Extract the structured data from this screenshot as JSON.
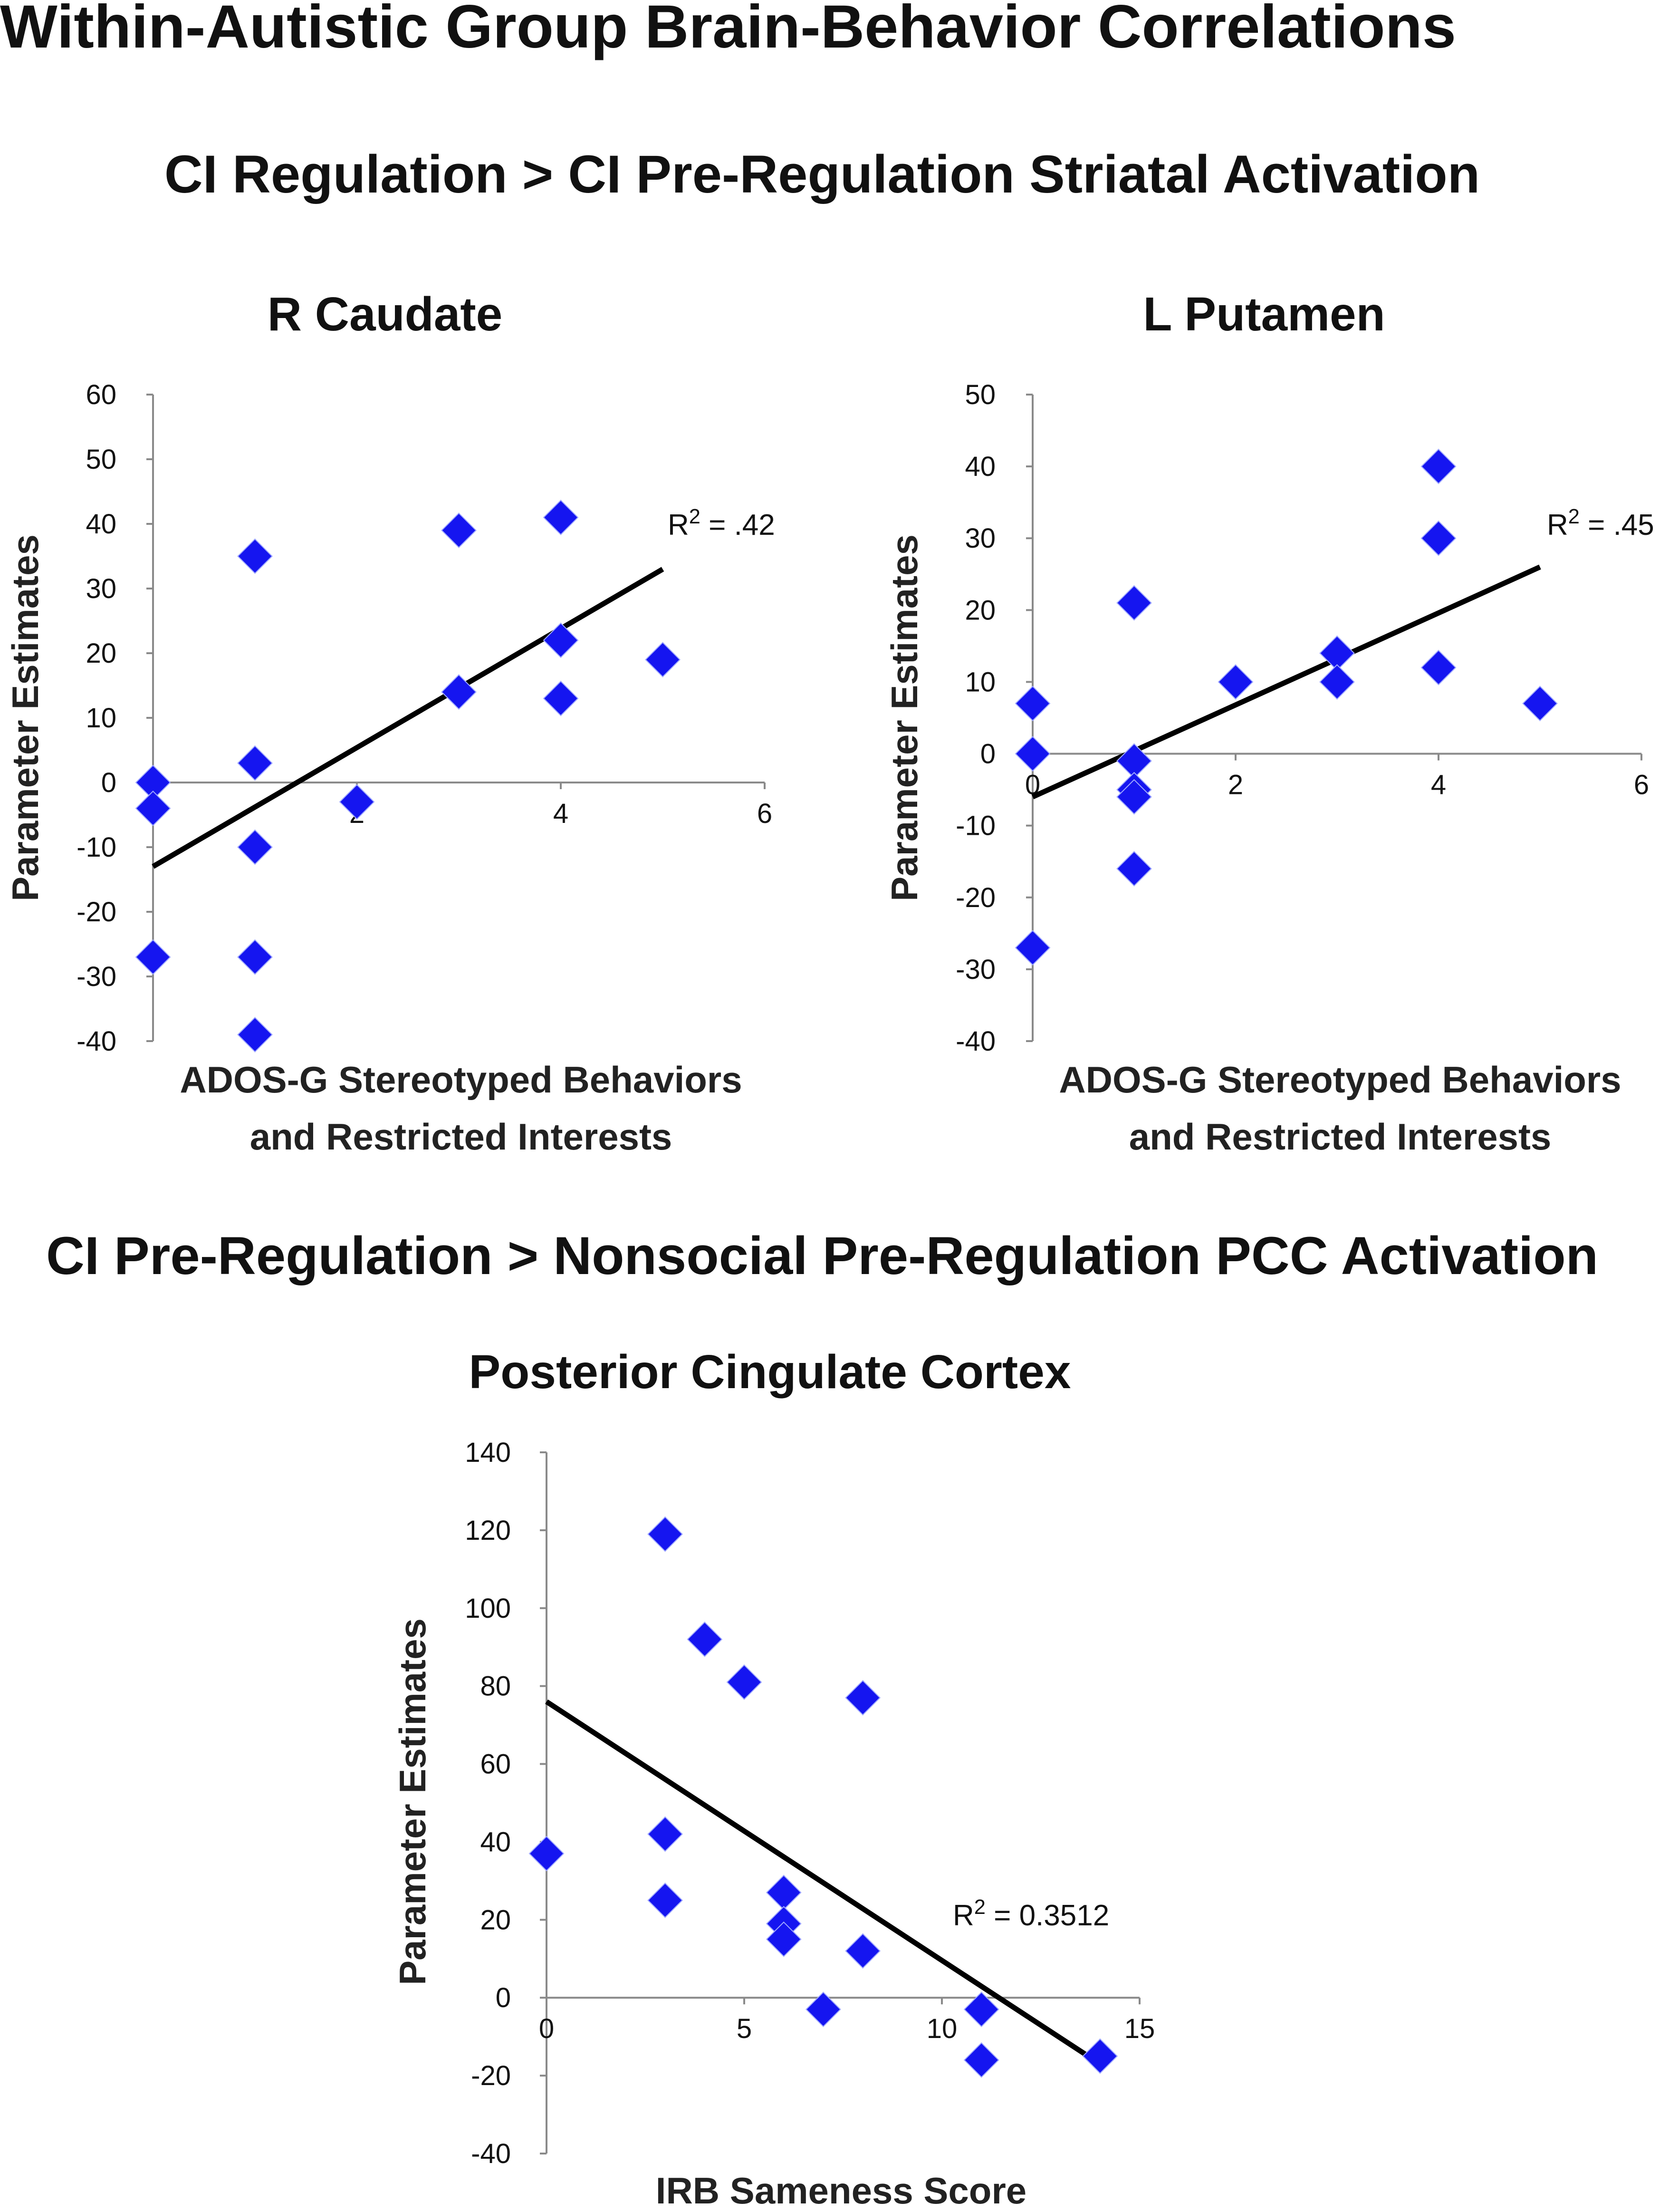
{
  "figure": {
    "title": "Within-Autistic Group Brain-Behavior Correlations",
    "section1_title": "CI Regulation > CI Pre-Regulation Striatal Activation",
    "section2_title": "CI Pre-Regulation > Nonsocial Pre-Regulation PCC Activation"
  },
  "chart_data": [
    {
      "type": "scatter",
      "title": "R Caudate",
      "xlabel": "ADOS-G Stereotyped Behaviors and Restricted Interests",
      "xlabel_lines": [
        "ADOS-G Stereotyped Behaviors",
        "and Restricted Interests"
      ],
      "ylabel": "Parameter Estimates",
      "xlim": [
        0,
        6
      ],
      "ylim": [
        -40,
        60
      ],
      "xticks": [
        0,
        2,
        4,
        6
      ],
      "yticks": [
        60,
        50,
        40,
        30,
        20,
        10,
        0,
        -10,
        -20,
        -30,
        -40
      ],
      "x": [
        0,
        0,
        0,
        1,
        1,
        1,
        1,
        1,
        2,
        3,
        3,
        4,
        4,
        4,
        5
      ],
      "y": [
        0,
        -4,
        -27,
        35,
        3,
        -10,
        -27,
        -39,
        -3,
        39,
        14,
        41,
        22,
        13,
        19
      ],
      "trendline": {
        "x": [
          0,
          5
        ],
        "y": [
          -13,
          33
        ]
      },
      "r2_label": "R² = .42"
    },
    {
      "type": "scatter",
      "title": "L Putamen",
      "xlabel": "ADOS-G Stereotyped Behaviors and Restricted Interests",
      "xlabel_lines": [
        "ADOS-G Stereotyped Behaviors",
        "and Restricted Interests"
      ],
      "ylabel": "Parameter Estimates",
      "xlim": [
        0,
        6
      ],
      "ylim": [
        -40,
        50
      ],
      "xticks": [
        0,
        2,
        4,
        6
      ],
      "yticks": [
        50,
        40,
        30,
        20,
        10,
        0,
        -10,
        -20,
        -30,
        -40
      ],
      "x": [
        0,
        0,
        0,
        1,
        1,
        1,
        1,
        1,
        2,
        3,
        3,
        4,
        4,
        4,
        5
      ],
      "y": [
        7,
        0,
        -27,
        21,
        -1,
        -5,
        -6,
        -16,
        10,
        14,
        10,
        40,
        30,
        12,
        7
      ],
      "trendline": {
        "x": [
          0,
          5
        ],
        "y": [
          -6,
          26
        ]
      },
      "r2_label": "R² = .45"
    },
    {
      "type": "scatter",
      "title": "Posterior Cingulate Cortex",
      "xlabel": "IRB Sameness Score",
      "xlabel_lines": [
        "IRB Sameness Score"
      ],
      "ylabel": "Parameter Estimates",
      "xlim": [
        0,
        15
      ],
      "ylim": [
        -40,
        140
      ],
      "xticks": [
        0,
        5,
        10,
        15
      ],
      "yticks": [
        140,
        120,
        100,
        80,
        60,
        40,
        20,
        0,
        -20,
        -40
      ],
      "x": [
        0,
        3,
        3,
        3,
        4,
        5,
        6,
        6,
        6,
        7,
        8,
        8,
        11,
        11,
        14
      ],
      "y": [
        37,
        119,
        42,
        25,
        92,
        81,
        27,
        19,
        15,
        -3,
        77,
        12,
        -3,
        -16,
        -15
      ],
      "trendline": {
        "x": [
          0,
          14
        ],
        "y": [
          76,
          -17
        ]
      },
      "r2_label": "R² = 0.3512"
    }
  ]
}
